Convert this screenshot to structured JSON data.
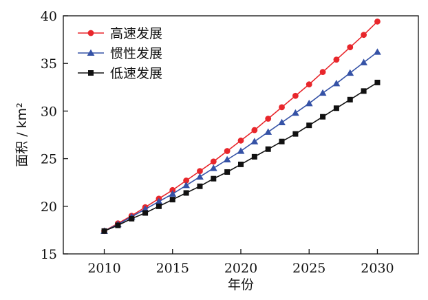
{
  "chart_data": {
    "type": "line",
    "xlabel": "年份",
    "ylabel": "面积 / km²",
    "xlim": [
      2007,
      2033
    ],
    "ylim": [
      15,
      40
    ],
    "xticks": [
      2010,
      2015,
      2020,
      2025,
      2030
    ],
    "yticks": [
      15,
      20,
      25,
      30,
      35,
      40
    ],
    "grid": false,
    "legend_position": "top-left",
    "x": [
      2010,
      2011,
      2012,
      2013,
      2014,
      2015,
      2016,
      2017,
      2018,
      2019,
      2020,
      2021,
      2022,
      2023,
      2024,
      2025,
      2026,
      2027,
      2028,
      2029,
      2030
    ],
    "series": [
      {
        "name": "高速发展",
        "color": "#e8262b",
        "marker": "circle",
        "values": [
          17.4,
          18.2,
          19.0,
          19.9,
          20.8,
          21.7,
          22.7,
          23.7,
          24.7,
          25.8,
          26.9,
          28.0,
          29.2,
          30.4,
          31.6,
          32.8,
          34.1,
          35.4,
          36.7,
          38.0,
          39.4
        ]
      },
      {
        "name": "惯性发展",
        "color": "#3552a6",
        "marker": "triangle",
        "values": [
          17.4,
          18.1,
          18.9,
          19.7,
          20.5,
          21.3,
          22.2,
          23.1,
          24.0,
          24.9,
          25.8,
          26.8,
          27.8,
          28.8,
          29.8,
          30.8,
          31.9,
          32.9,
          34.0,
          35.1,
          36.2
        ]
      },
      {
        "name": "低速发展",
        "color": "#111111",
        "marker": "square",
        "values": [
          17.4,
          18.0,
          18.7,
          19.3,
          20.0,
          20.7,
          21.4,
          22.1,
          22.9,
          23.6,
          24.4,
          25.2,
          26.0,
          26.8,
          27.6,
          28.5,
          29.4,
          30.3,
          31.2,
          32.1,
          33.0
        ]
      }
    ]
  }
}
